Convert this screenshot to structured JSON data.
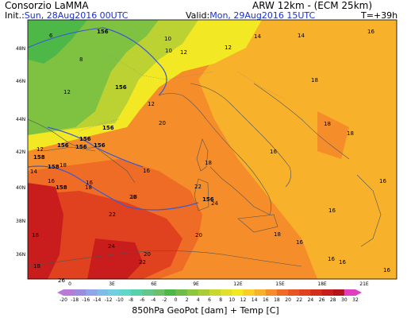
{
  "header": {
    "title": "Consorzio LaMMA",
    "model": "ARW 12km - (ECM 25km)",
    "init_label": "Init.:",
    "init_value": "Sun, 28Aug2016 00UTC",
    "valid_label": "Valid:",
    "valid_value": "Mon, 29Aug2016 15UTC",
    "lead_time": "T=+39h"
  },
  "map": {
    "lat_labels": [
      "48N",
      "46N",
      "44N",
      "42N",
      "40N",
      "38N",
      "36N"
    ],
    "lon_labels": [
      "0",
      "3E",
      "6E",
      "9E",
      "12E",
      "15E",
      "18E",
      "21E"
    ],
    "geopotential_labels": [
      "156",
      "156",
      "156",
      "156",
      "156",
      "158",
      "158",
      "156",
      "156",
      "156",
      "158"
    ],
    "temperature_labels": [
      "6",
      "8",
      "10",
      "10",
      "12",
      "12",
      "14",
      "14",
      "16",
      "18",
      "18",
      "16",
      "18",
      "16",
      "16",
      "16",
      "18",
      "20",
      "20",
      "18",
      "12",
      "12",
      "12",
      "14",
      "16",
      "18",
      "18",
      "18",
      "20",
      "22",
      "22",
      "24",
      "26",
      "16",
      "16",
      "16",
      "18",
      "16",
      "20",
      "22",
      "24",
      "16",
      "18"
    ],
    "colors": {
      "green_dark": "#4db848",
      "green": "#7fc241",
      "yellow_green": "#bcd233",
      "yellow": "#f3e824",
      "orange_light": "#f7b12a",
      "orange": "#f58d2a",
      "orange_dark": "#ef6c26",
      "red": "#e0421f",
      "red_dark": "#c91c1c"
    }
  },
  "legend": {
    "ticks": [
      "-20",
      "-18",
      "-16",
      "-14",
      "-12",
      "-10",
      "-8",
      "-6",
      "-4",
      "-2",
      "0",
      "2",
      "4",
      "6",
      "8",
      "10",
      "12",
      "14",
      "16",
      "18",
      "20",
      "22",
      "24",
      "26",
      "28",
      "30",
      "32"
    ],
    "colors": [
      "#b97ad8",
      "#9b8ce0",
      "#8fa6e8",
      "#7fbde8",
      "#6fd0e0",
      "#5fd8c8",
      "#58d0a8",
      "#5fc88a",
      "#6cc06a",
      "#4db848",
      "#6fbd46",
      "#8fc640",
      "#aacc38",
      "#c8d830",
      "#e2e02a",
      "#f3e824",
      "#f7cf28",
      "#f7b12a",
      "#f58d2a",
      "#ef6c26",
      "#e85424",
      "#e0421f",
      "#d42e1d",
      "#c91c1c",
      "#b3141c",
      "#e040c0"
    ],
    "caption": "850hPa GeoPot [dam] + Temp [C]"
  }
}
